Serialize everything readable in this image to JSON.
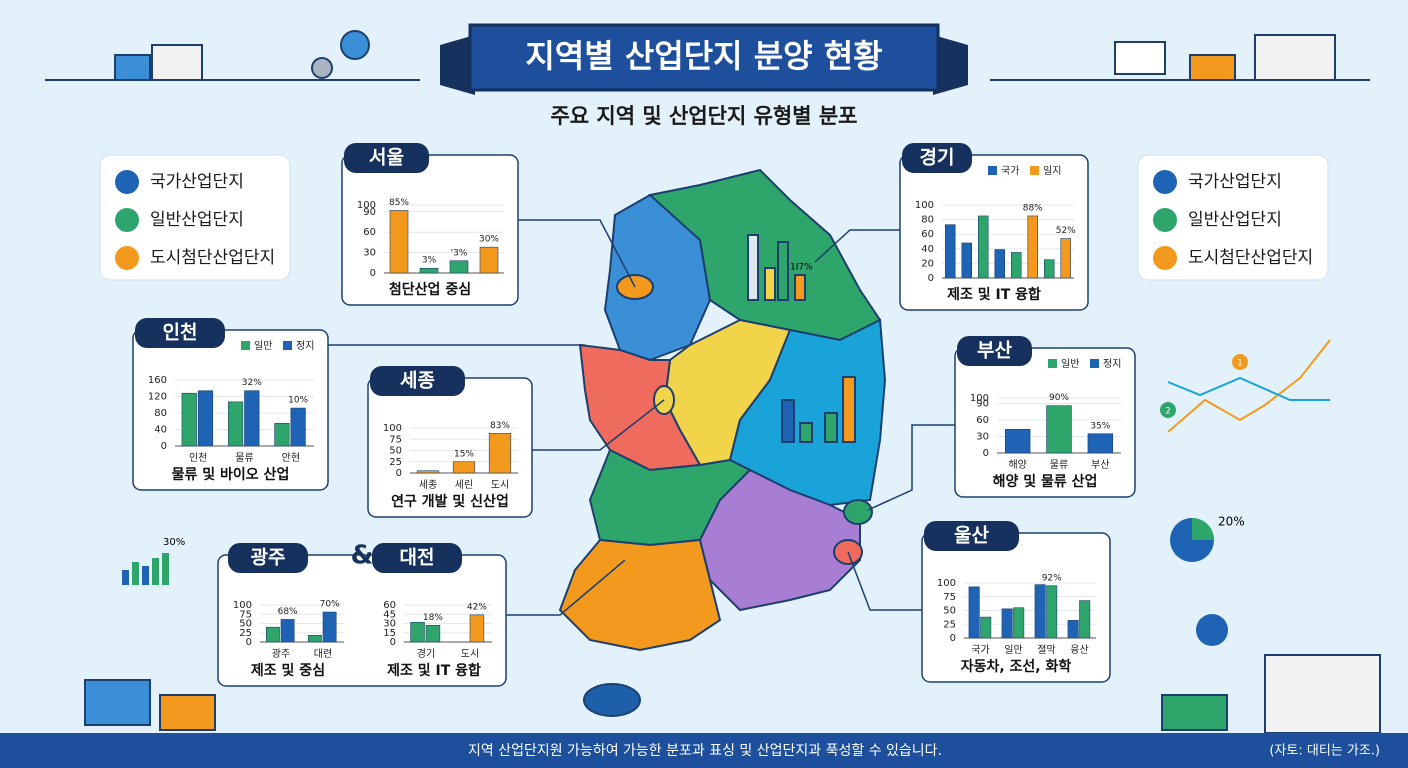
{
  "header": {
    "title": "지역별 산업단지 분양 현황",
    "subtitle": "주요 지역 및 산업단지 유형별 분포"
  },
  "legend_left": [
    {
      "label": "국가산업단지",
      "color": "#1f63b5"
    },
    {
      "label": "일반산업단지",
      "color": "#2ea66b"
    },
    {
      "label": "도시첨단산업단지",
      "color": "#f39a1e"
    }
  ],
  "legend_right": [
    {
      "label": "국가산업단지",
      "color": "#1f63b5"
    },
    {
      "label": "일반산업단지",
      "color": "#2ea66b"
    },
    {
      "label": "도시첨단산업단지",
      "color": "#f39a1e"
    }
  ],
  "chart_data": [
    {
      "type": "bar",
      "title": "서울",
      "caption": "첨단산업 중심",
      "ylim": [
        0,
        100
      ],
      "yticks": [
        0,
        30,
        60,
        90,
        100
      ],
      "values": [
        92,
        7,
        18,
        38
      ],
      "colors": [
        "#f39a1e",
        "#2ea66b",
        "#2ea66b",
        "#f39a1e"
      ],
      "annotations": [
        "85%",
        "3%",
        "'3%",
        "30%"
      ]
    },
    {
      "type": "bar",
      "title": "경기",
      "caption": "제조 및 IT 융합",
      "ylim": [
        0,
        100
      ],
      "yticks": [
        0,
        20,
        40,
        60,
        80,
        100
      ],
      "legend": [
        {
          "name": "국가",
          "color": "#1f63b5"
        },
        {
          "name": "일지",
          "color": "#f39a1e"
        }
      ],
      "values": [
        73,
        48,
        85,
        39,
        35,
        85,
        25,
        54
      ],
      "colors": [
        "#1f63b5",
        "#1f63b5",
        "#2ea66b",
        "#1f63b5",
        "#2ea66b",
        "#f39a1e",
        "#2ea66b",
        "#f39a1e"
      ],
      "annotations": [
        "88%",
        "52%"
      ]
    },
    {
      "type": "bar",
      "title": "인천",
      "caption": "물류 및 바이오 산업",
      "ylim": [
        0,
        160
      ],
      "yticks": [
        0,
        40,
        80,
        120,
        160
      ],
      "categories": [
        "인천",
        "물류",
        "안현"
      ],
      "series": [
        {
          "name": "일만",
          "color": "#2ea66b",
          "values": [
            128,
            107,
            55
          ]
        },
        {
          "name": "정지",
          "color": "#1f63b5",
          "values": [
            134,
            134,
            92
          ]
        }
      ],
      "annotations": [
        "32%",
        "10%"
      ]
    },
    {
      "type": "bar",
      "title": "세종",
      "caption": "연구 개발 및 신산업",
      "ylim": [
        0,
        100
      ],
      "yticks": [
        0,
        25,
        50,
        75,
        100
      ],
      "categories": [
        "세종",
        "세린",
        "도시"
      ],
      "values": [
        5,
        25,
        88
      ],
      "colors": [
        "#f39a1e",
        "#f39a1e",
        "#f39a1e"
      ],
      "annotations": [
        "15%",
        "83%"
      ]
    },
    {
      "type": "bar",
      "title": "부산",
      "caption": "해양 및 물류 산업",
      "ylim": [
        0,
        100
      ],
      "yticks": [
        0,
        30,
        60,
        90,
        100
      ],
      "legend": [
        {
          "name": "일반",
          "color": "#2ea66b"
        },
        {
          "name": "정지",
          "color": "#1f63b5"
        }
      ],
      "categories": [
        "해양",
        "물류",
        "부산"
      ],
      "values": [
        43,
        86,
        35
      ],
      "colors": [
        "#1f63b5",
        "#2ea66b",
        "#1f63b5"
      ],
      "annotations": [
        "90%",
        "35%"
      ]
    },
    {
      "type": "bar",
      "title": "울산",
      "caption": "자동차, 조선, 화학",
      "ylim": [
        0,
        100
      ],
      "yticks": [
        0,
        25,
        50,
        75,
        100
      ],
      "categories": [
        "국가",
        "일만",
        "졀막",
        "융산"
      ],
      "series": [
        {
          "color": "#1f63b5",
          "values": [
            93,
            53,
            97,
            32
          ]
        },
        {
          "color": "#2ea66b",
          "values": [
            38,
            55,
            95,
            68
          ]
        }
      ],
      "annotations": [
        "92%"
      ]
    },
    {
      "type": "bar",
      "title": "광주",
      "caption": "제조 및 중심",
      "ylim": [
        0,
        100
      ],
      "yticks": [
        0,
        25,
        50,
        75,
        100
      ],
      "categories": [
        "광주",
        "대련"
      ],
      "series": [
        {
          "color": "#2ea66b",
          "values": [
            40,
            18
          ]
        },
        {
          "color": "#1f63b5",
          "values": [
            61,
            81
          ]
        }
      ],
      "annotations": [
        "68%",
        "70%"
      ]
    },
    {
      "type": "bar",
      "title": "대전",
      "caption": "제조 및 IT 융합",
      "ylim": [
        0,
        60
      ],
      "yticks": [
        0,
        15,
        30,
        45,
        60
      ],
      "categories": [
        "경기",
        "도시"
      ],
      "series": [
        {
          "color": "#2ea66b",
          "values": [
            32,
            null
          ]
        },
        {
          "colors": [
            "#2ea66b",
            "#f39a1e"
          ],
          "values": [
            27,
            44
          ]
        }
      ],
      "annotations": [
        "18%",
        "42%"
      ]
    }
  ],
  "joiner": "&",
  "decor_labels": [
    "30%",
    "20%",
    "1I7%",
    "1",
    "2"
  ],
  "footer": {
    "text": "지역 산업단지원 가능하여 가능한 분포과 표싱 및 산업단지과 푹성할 수 있습니다.",
    "source": "(자토: 대티는 가조.)"
  }
}
